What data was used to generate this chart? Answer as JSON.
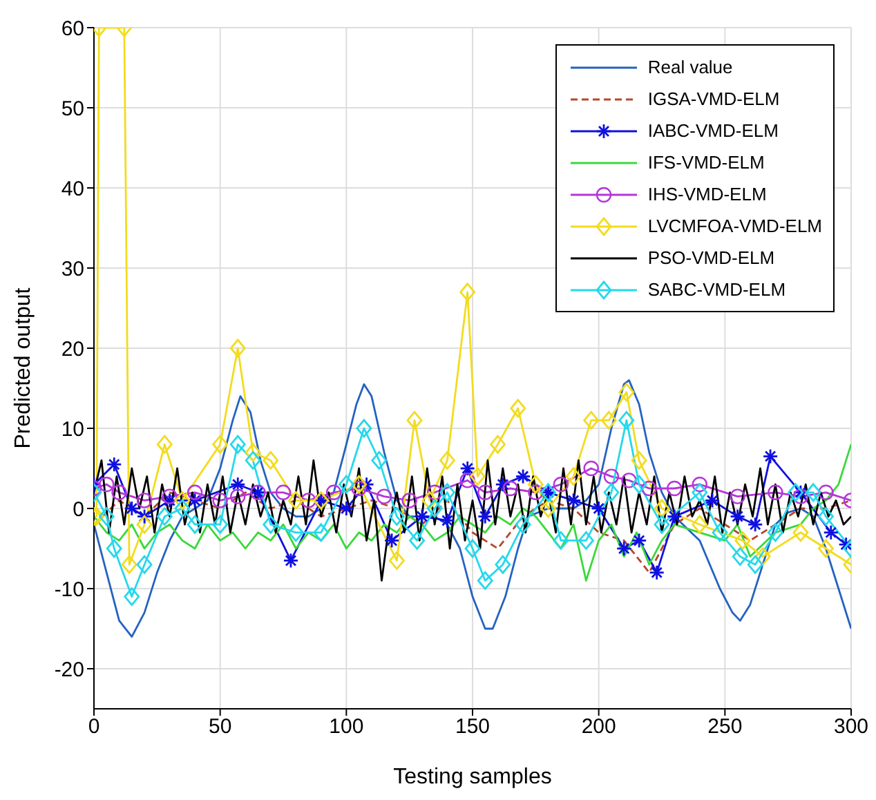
{
  "chart_data": {
    "type": "line",
    "xlabel": "Testing samples",
    "ylabel": "Predicted output",
    "xlim": [
      0,
      300
    ],
    "xticks": [
      0,
      50,
      100,
      150,
      200,
      250,
      300
    ],
    "ylim": [
      -25,
      60
    ],
    "yticks": [
      -20,
      -10,
      0,
      10,
      20,
      30,
      40,
      50,
      60
    ],
    "grid": true,
    "legend": "top right",
    "series": [
      {
        "name": "Real value",
        "color": "#2462c2",
        "marker": "none",
        "line_style": "solid",
        "x": [
          0,
          5,
          10,
          15,
          20,
          25,
          30,
          35,
          40,
          45,
          50,
          55,
          58,
          62,
          66,
          70,
          75,
          80,
          85,
          90,
          95,
          100,
          104,
          107,
          110,
          115,
          120,
          125,
          130,
          135,
          140,
          145,
          150,
          155,
          158,
          163,
          168,
          172,
          180,
          190,
          195,
          200,
          205,
          210,
          212,
          216,
          220,
          225,
          230,
          240,
          248,
          253,
          256,
          260,
          265,
          270,
          275,
          280,
          285,
          290,
          295,
          300
        ],
        "values": [
          -2,
          -8,
          -14,
          -16,
          -13,
          -8,
          -4,
          -1,
          0,
          1,
          5,
          11,
          14,
          12,
          6,
          2,
          0,
          -1,
          -1,
          0,
          2,
          8,
          13,
          15.5,
          14,
          7,
          1,
          -1,
          -1,
          -1,
          -2,
          -5,
          -11,
          -15,
          -15,
          -11,
          -5,
          -1,
          0,
          0,
          1,
          3,
          10,
          15.5,
          16,
          13,
          7,
          2,
          -1,
          -4,
          -10,
          -13,
          -14,
          -12,
          -7,
          -2,
          -0.5,
          0,
          -1,
          -5,
          -10,
          -15
        ]
      },
      {
        "name": "IGSA-VMD-ELM",
        "color": "#b5472a",
        "marker": "none",
        "line_style": "dashed",
        "x": [
          0,
          10,
          20,
          30,
          40,
          50,
          60,
          70,
          80,
          90,
          100,
          110,
          120,
          130,
          140,
          150,
          160,
          170,
          180,
          190,
          200,
          210,
          220,
          230,
          240,
          250,
          260,
          270,
          280,
          290,
          300
        ],
        "values": [
          -2,
          1,
          -1,
          2,
          1,
          0,
          2,
          0,
          1,
          -1,
          0,
          1,
          0,
          -2,
          1,
          -3,
          -5,
          -1,
          1,
          0,
          -3,
          -4,
          -8,
          -2,
          0,
          -2,
          -4,
          -2,
          0,
          0,
          1
        ]
      },
      {
        "name": "IABC-VMD-ELM",
        "color": "#1010e0",
        "marker": "cross",
        "line_style": "solid",
        "x": [
          0,
          8,
          15,
          20,
          30,
          40,
          57,
          65,
          78,
          90,
          100,
          108,
          118,
          130,
          140,
          148,
          155,
          162,
          170,
          180,
          190,
          200,
          210,
          216,
          223,
          230,
          245,
          255,
          262,
          268,
          280,
          292,
          298
        ],
        "values": [
          3,
          5.5,
          0,
          -1,
          1,
          1,
          3,
          2,
          -6.5,
          1,
          0,
          3,
          -4,
          -1,
          -1.5,
          5,
          -1,
          3,
          4,
          2,
          1,
          0,
          -5,
          -4,
          -8,
          -1,
          1,
          -1,
          -2,
          6.5,
          2,
          -3,
          -4.5
        ]
      },
      {
        "name": "IFS-VMD-ELM",
        "color": "#3ad83a",
        "marker": "none",
        "line_style": "solid",
        "x": [
          0,
          5,
          10,
          15,
          20,
          25,
          30,
          35,
          40,
          45,
          50,
          55,
          60,
          65,
          70,
          75,
          80,
          85,
          90,
          95,
          100,
          105,
          110,
          115,
          120,
          125,
          130,
          135,
          140,
          145,
          150,
          155,
          160,
          165,
          170,
          175,
          180,
          185,
          190,
          195,
          200,
          205,
          210,
          215,
          220,
          225,
          230,
          240,
          250,
          255,
          260,
          270,
          280,
          285,
          290,
          295,
          300
        ],
        "values": [
          -1,
          -3,
          -4,
          -2,
          -5,
          -3,
          -2,
          -4,
          -5,
          -2,
          -4,
          -3,
          -5,
          -3,
          -4,
          -2,
          -5,
          -3,
          -4,
          -2,
          -5,
          -3,
          -4,
          -2,
          -3,
          -1,
          -2,
          -4,
          -3,
          -1,
          -2,
          -3,
          -1,
          -2,
          0,
          -1,
          -3,
          -5,
          -2,
          -9,
          -4,
          -2,
          -6,
          -3,
          -7,
          -4,
          -2,
          -3,
          -4,
          -2,
          -6,
          -3,
          -2,
          0,
          1,
          3,
          8
        ]
      },
      {
        "name": "IHS-VMD-ELM",
        "color": "#b536d8",
        "marker": "circle",
        "line_style": "solid",
        "x": [
          0,
          5,
          10,
          20,
          30,
          40,
          50,
          57,
          65,
          75,
          85,
          95,
          105,
          115,
          125,
          135,
          148,
          155,
          165,
          175,
          185,
          197,
          205,
          212,
          220,
          230,
          240,
          255,
          270,
          280,
          290,
          300
        ],
        "values": [
          2.5,
          3,
          2,
          1,
          1.5,
          2,
          1,
          1.5,
          2,
          2,
          1,
          2,
          2.5,
          1.5,
          1,
          2,
          3.5,
          2,
          2.5,
          2,
          3,
          5,
          4,
          3.5,
          2.5,
          2.5,
          3,
          1.5,
          2,
          1.5,
          2,
          1
        ]
      },
      {
        "name": "LVCMFOA-VMD-ELM",
        "color": "#f2dc1e",
        "marker": "diamond",
        "line_style": "solid",
        "x": [
          0,
          1,
          2,
          12,
          14,
          20,
          28,
          35,
          50,
          57,
          63,
          70,
          80,
          90,
          105,
          120,
          127,
          133,
          140,
          148,
          152,
          160,
          168,
          175,
          180,
          190,
          197,
          204,
          211,
          216,
          225,
          240,
          257,
          265,
          280,
          290,
          300
        ],
        "values": [
          -1,
          -1,
          60,
          60,
          -7,
          -2,
          8,
          1,
          8,
          20,
          7,
          6,
          1,
          1,
          3,
          -6.5,
          11,
          1,
          6,
          27,
          4,
          8,
          12.5,
          3,
          0,
          4,
          11,
          11,
          14.5,
          6,
          0,
          -2,
          -4,
          -6,
          -3,
          -5,
          -7
        ]
      },
      {
        "name": "PSO-VMD-ELM",
        "color": "#000000",
        "marker": "none",
        "line_style": "solid",
        "x": [
          0,
          3,
          6,
          9,
          12,
          15,
          18,
          21,
          24,
          27,
          30,
          33,
          36,
          39,
          42,
          45,
          48,
          51,
          54,
          57,
          60,
          63,
          66,
          69,
          72,
          75,
          78,
          81,
          84,
          87,
          90,
          93,
          96,
          99,
          102,
          105,
          108,
          111,
          114,
          117,
          120,
          123,
          126,
          129,
          132,
          135,
          138,
          141,
          144,
          147,
          150,
          153,
          156,
          159,
          162,
          165,
          168,
          171,
          174,
          177,
          180,
          183,
          186,
          189,
          192,
          195,
          198,
          201,
          204,
          207,
          210,
          213,
          216,
          219,
          222,
          225,
          228,
          231,
          234,
          237,
          240,
          243,
          246,
          249,
          252,
          255,
          258,
          261,
          264,
          267,
          270,
          273,
          276,
          279,
          282,
          285,
          288,
          291,
          294,
          297,
          300
        ],
        "values": [
          2,
          6,
          -3,
          4,
          -2,
          5,
          0,
          4,
          -3,
          3,
          -1,
          5,
          -2,
          2,
          -3,
          3,
          -2,
          4,
          -3,
          2,
          -2,
          3,
          -1,
          2,
          -3,
          1,
          -2,
          4,
          -2,
          6,
          -1,
          2,
          -3,
          3,
          -1,
          5,
          -4,
          1,
          -9,
          -2,
          2,
          -3,
          4,
          -4,
          5,
          -2,
          4,
          -5,
          3,
          -4,
          1,
          -5,
          6,
          -2,
          5,
          -1,
          3,
          -3,
          4,
          -1,
          2,
          -3,
          5,
          -2,
          6,
          -2,
          4,
          -3,
          2,
          -2,
          4,
          -3,
          2,
          -2,
          4,
          -3,
          2,
          -2,
          4,
          -1,
          1,
          -2,
          4,
          -3,
          2,
          -2,
          3,
          -1,
          5,
          -2,
          3,
          -3,
          2,
          -1,
          3,
          -2,
          2,
          -1,
          1,
          -2,
          -1
        ]
      },
      {
        "name": "SABC-VMD-ELM",
        "color": "#25d8ec",
        "marker": "diamond",
        "line_style": "solid",
        "x": [
          0,
          5,
          8,
          15,
          20,
          28,
          35,
          40,
          50,
          57,
          63,
          70,
          80,
          90,
          100,
          107,
          113,
          120,
          128,
          135,
          140,
          150,
          155,
          162,
          170,
          180,
          185,
          195,
          205,
          211,
          216,
          225,
          240,
          248,
          256,
          262,
          270,
          278,
          285,
          290,
          300
        ],
        "values": [
          2,
          -1,
          -5,
          -11,
          -7,
          -1,
          0,
          -2,
          -2,
          8,
          6,
          -2,
          -3,
          -3,
          3,
          10,
          6,
          -1,
          -4,
          0,
          2,
          -5,
          -9,
          -7,
          -2,
          2,
          -4,
          -4,
          2,
          11,
          3,
          -2,
          2,
          -3,
          -6,
          -7,
          -3,
          2,
          2,
          -1,
          -5
        ]
      }
    ]
  }
}
